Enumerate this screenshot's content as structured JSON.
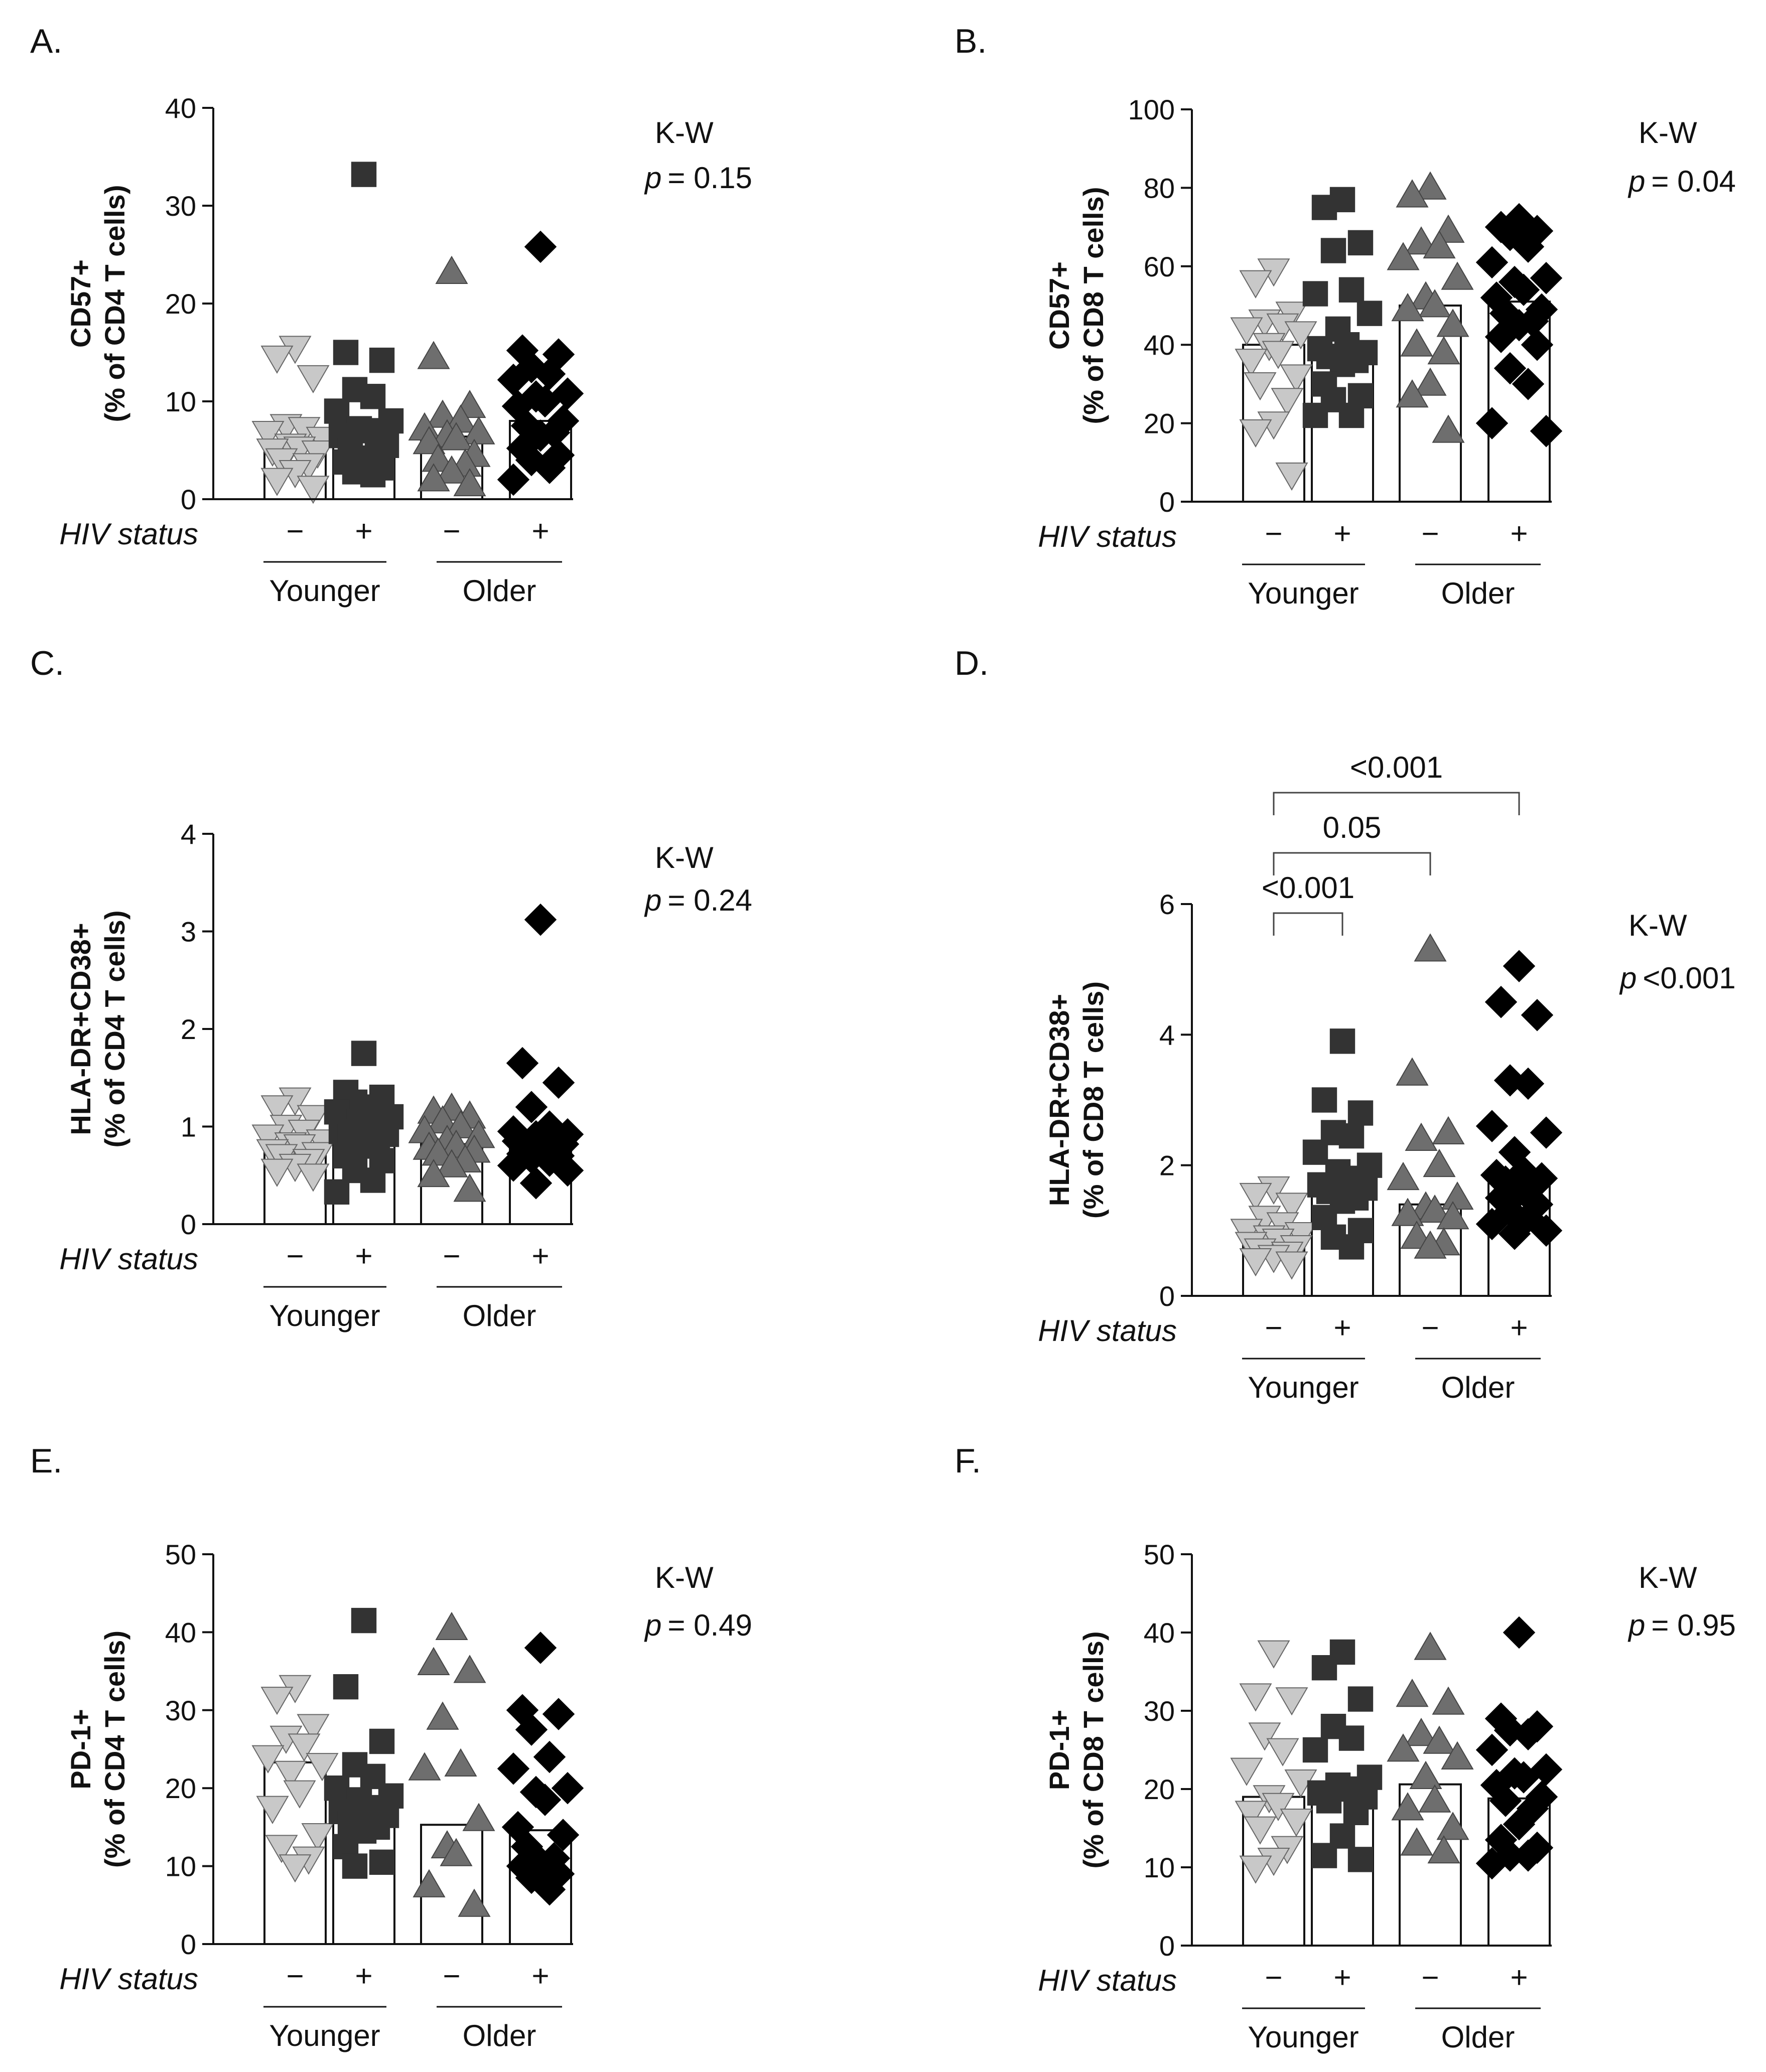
{
  "group_labels": {
    "hiv_status_label": "HIV status",
    "minus": "−",
    "plus": "+",
    "younger": "Younger",
    "older": "Older",
    "kw_label": "K-W",
    "p_label": "p"
  },
  "colors": {
    "younger_neg": "#c8c8c8",
    "younger_pos": "#333333",
    "older_neg": "#6e6e6e",
    "older_pos": "#000000"
  },
  "chart_data": [
    {
      "panel": "A.",
      "type": "bar",
      "ylabel_line1": "CD57+",
      "ylabel_line2": "(% of CD4 T cells)",
      "ylim": [
        0,
        40
      ],
      "yticks": [
        "0",
        "10",
        "20",
        "30",
        "40"
      ],
      "categories": [
        "Younger HIV−",
        "Younger HIV+",
        "Older HIV−",
        "Older HIV+"
      ],
      "values": [
        5.2,
        6.8,
        6.4,
        8.0
      ],
      "points": [
        [
          15.5,
          14.5,
          12.5,
          7.5,
          7.2,
          6.8,
          6.2,
          5.5,
          5.2,
          5.0,
          4.8,
          4.0,
          3.5,
          2.8,
          2.0,
          1.2
        ],
        [
          33.2,
          15.0,
          14.2,
          11.2,
          10.5,
          9.0,
          8.0,
          7.2,
          7.0,
          6.5,
          5.5,
          5.0,
          4.5,
          4.2,
          3.8,
          3.2,
          2.8,
          2.5
        ],
        [
          23.2,
          14.5,
          9.5,
          8.5,
          8.0,
          7.2,
          6.8,
          6.5,
          6.2,
          5.8,
          4.5,
          4.0,
          3.5,
          2.8,
          2.0,
          1.5
        ],
        [
          25.8,
          15.2,
          14.8,
          13.5,
          12.8,
          12.2,
          10.8,
          10.5,
          10.0,
          9.5,
          8.0,
          7.5,
          6.8,
          6.5,
          5.2,
          4.5,
          4.0,
          3.2,
          2.0
        ]
      ],
      "kw_text": "K-W",
      "p_value": "= 0.15",
      "brackets": []
    },
    {
      "panel": "B.",
      "type": "bar",
      "ylabel_line1": "CD57+",
      "ylabel_line2": "(% of CD8 T cells)",
      "ylim": [
        0,
        100
      ],
      "yticks": [
        "0",
        "20",
        "40",
        "60",
        "80",
        "100"
      ],
      "categories": [
        "Younger HIV−",
        "Younger HIV+",
        "Older HIV−",
        "Older HIV+"
      ],
      "values": [
        40,
        40,
        50,
        51
      ],
      "points": [
        [
          59,
          56,
          48,
          46,
          45,
          44,
          43,
          40,
          38,
          36,
          32,
          30,
          26,
          20,
          18,
          7
        ],
        [
          77,
          75,
          66,
          64,
          54,
          53,
          48,
          44,
          40,
          39,
          38,
          37,
          36,
          35,
          30,
          27,
          26,
          22,
          22
        ],
        [
          80,
          78,
          69,
          66,
          65,
          62,
          57,
          52,
          50,
          49,
          45,
          40,
          38,
          30,
          27,
          18
        ],
        [
          72,
          70,
          69,
          68,
          65,
          61,
          57,
          56,
          54,
          52,
          49,
          48,
          46,
          45,
          42,
          40,
          34,
          30,
          20,
          18
        ]
      ],
      "kw_text": "K-W",
      "p_value": "= 0.04",
      "brackets": []
    },
    {
      "panel": "C.",
      "type": "bar",
      "ylabel_line1": "HLA-DR+CD38+",
      "ylabel_line2": "(% of CD4 T cells)",
      "ylim": [
        0,
        4
      ],
      "yticks": [
        "0",
        "1",
        "2",
        "3",
        "4"
      ],
      "categories": [
        "Younger HIV−",
        "Younger HIV+",
        "Older HIV−",
        "Older HIV+"
      ],
      "values": [
        0.78,
        0.93,
        0.82,
        0.85
      ],
      "points": [
        [
          1.28,
          1.2,
          1.1,
          1.0,
          0.95,
          0.9,
          0.85,
          0.82,
          0.8,
          0.75,
          0.72,
          0.7,
          0.65,
          0.6,
          0.55,
          0.5
        ],
        [
          1.75,
          1.35,
          1.3,
          1.25,
          1.2,
          1.15,
          1.1,
          1.05,
          1.0,
          0.95,
          0.92,
          0.9,
          0.85,
          0.8,
          0.7,
          0.65,
          0.55,
          0.45,
          0.33
        ],
        [
          1.18,
          1.15,
          1.1,
          1.05,
          1.0,
          0.95,
          0.9,
          0.85,
          0.8,
          0.78,
          0.75,
          0.72,
          0.65,
          0.6,
          0.5,
          0.35
        ],
        [
          3.12,
          1.65,
          1.45,
          1.2,
          1.0,
          0.95,
          0.92,
          0.9,
          0.88,
          0.85,
          0.82,
          0.8,
          0.78,
          0.75,
          0.72,
          0.7,
          0.68,
          0.65,
          0.6,
          0.55,
          0.42
        ]
      ],
      "kw_text": "K-W",
      "p_value": "= 0.24",
      "brackets": []
    },
    {
      "panel": "D.",
      "type": "bar",
      "ylabel_line1": "HLA-DR+CD38+",
      "ylabel_line2": "(% of CD8 T cells)",
      "ylim": [
        0,
        6
      ],
      "yticks": [
        "0",
        "2",
        "4",
        "6"
      ],
      "categories": [
        "Younger HIV−",
        "Younger HIV+",
        "Older HIV−",
        "Older HIV+"
      ],
      "values": [
        0.82,
        1.75,
        1.4,
        1.8
      ],
      "points": [
        [
          1.65,
          1.55,
          1.4,
          1.2,
          1.1,
          1.0,
          0.95,
          0.9,
          0.85,
          0.8,
          0.75,
          0.7,
          0.65,
          0.6,
          0.55,
          0.5
        ],
        [
          3.9,
          3.0,
          2.8,
          2.5,
          2.45,
          2.2,
          2.0,
          1.9,
          1.8,
          1.7,
          1.65,
          1.6,
          1.5,
          1.45,
          1.2,
          1.0,
          0.9,
          0.75
        ],
        [
          5.3,
          3.4,
          2.5,
          2.4,
          2.0,
          1.8,
          1.5,
          1.35,
          1.3,
          1.25,
          1.2,
          0.9,
          0.8,
          0.75
        ],
        [
          5.05,
          4.5,
          4.3,
          3.3,
          3.25,
          2.6,
          2.5,
          2.2,
          1.9,
          1.85,
          1.8,
          1.75,
          1.7,
          1.6,
          1.5,
          1.4,
          1.3,
          1.2,
          1.1,
          1.0,
          0.95
        ]
      ],
      "kw_text": "K-W",
      "p_value": "<0.001",
      "brackets": [
        {
          "from": 0,
          "to": 1,
          "label": "<0.001"
        },
        {
          "from": 0,
          "to": 2,
          "label": "0.05"
        },
        {
          "from": 0,
          "to": 3,
          "label": "<0.001"
        }
      ]
    },
    {
      "panel": "E.",
      "type": "bar",
      "ylabel_line1": "PD-1+",
      "ylabel_line2": "(% of CD4 T cells)",
      "ylim": [
        0,
        50
      ],
      "yticks": [
        "0",
        "10",
        "20",
        "30",
        "40",
        "50"
      ],
      "categories": [
        "Younger HIV−",
        "Younger HIV+",
        "Older HIV−",
        "Older HIV+"
      ],
      "values": [
        23.3,
        17.0,
        15.3,
        14.6
      ],
      "points": [
        [
          33,
          31.5,
          28,
          26.5,
          25.5,
          24,
          23,
          22,
          19.5,
          17.5,
          14,
          12.5,
          11,
          10
        ],
        [
          41.5,
          33,
          26,
          23,
          21.5,
          20,
          19,
          18.5,
          17.5,
          17,
          16.5,
          15.5,
          15,
          14.5,
          12.5,
          10.5,
          10
        ],
        [
          40.5,
          36,
          35,
          29,
          23,
          22.5,
          16,
          12.5,
          11.5,
          7.5,
          5
        ],
        [
          38,
          30,
          29.5,
          27.5,
          24,
          22.5,
          20,
          19.5,
          18.5,
          15,
          14,
          12.5,
          11,
          10.5,
          10,
          9,
          8.5,
          7
        ]
      ],
      "kw_text": "K-W",
      "p_value": "=   0.49",
      "brackets": []
    },
    {
      "panel": "F.",
      "type": "bar",
      "ylabel_line1": "PD-1+",
      "ylabel_line2": "(% of CD8 T cells)",
      "ylim": [
        0,
        50
      ],
      "yticks": [
        "0",
        "10",
        "20",
        "30",
        "40",
        "50"
      ],
      "categories": [
        "Younger HIV−",
        "Younger HIV+",
        "Older HIV−",
        "Older HIV+"
      ],
      "values": [
        19.0,
        20.2,
        20.6,
        18.8
      ],
      "points": [
        [
          37.5,
          32,
          31.5,
          27,
          25,
          22.5,
          21,
          19,
          18,
          17,
          16,
          15,
          12.5,
          11,
          10
        ],
        [
          37.5,
          35.5,
          31.5,
          28,
          26.5,
          25,
          21.5,
          20.5,
          20,
          19.5,
          19,
          18.5,
          17,
          14,
          11.5,
          11
        ],
        [
          38,
          32,
          31,
          27,
          26,
          25,
          24,
          21.5,
          18.5,
          17.5,
          15,
          13,
          12
        ],
        [
          40,
          29,
          28,
          27.5,
          27,
          25,
          22.5,
          22,
          21.5,
          20.5,
          19,
          18.5,
          17.5,
          15.5,
          13.5,
          12.5,
          11.5,
          11.5,
          10.5
        ]
      ],
      "kw_text": "K-W",
      "p_value": "= 0.95",
      "brackets": []
    }
  ]
}
